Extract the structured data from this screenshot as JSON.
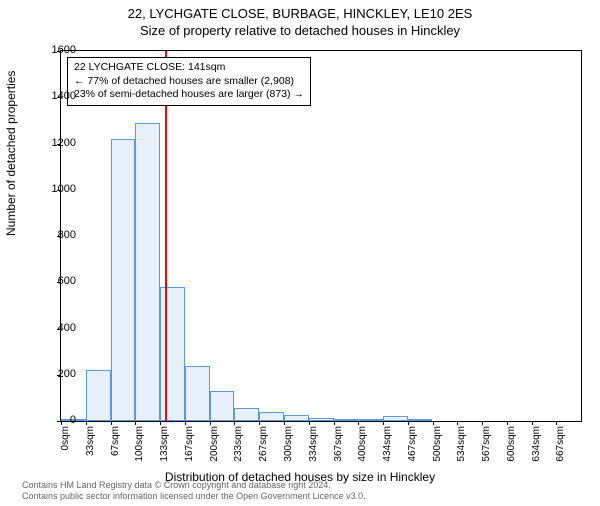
{
  "title_main": "22, LYCHGATE CLOSE, BURBAGE, HINCKLEY, LE10 2ES",
  "title_sub": "Size of property relative to detached houses in Hinckley",
  "ylabel": "Number of detached properties",
  "xlabel": "Distribution of detached houses by size in Hinckley",
  "chart": {
    "type": "histogram",
    "background_color": "#ffffff",
    "border_color": "#000000",
    "bar_fill": "#e8f0fb",
    "bar_stroke": "#5b9bd5",
    "refline_color": "#ff0000",
    "refline_x": 141,
    "ylim": [
      0,
      1600
    ],
    "ytick_step": 200,
    "xlim": [
      0,
      700
    ],
    "xtick_step": 33.35,
    "xtick_labels": [
      "0sqm",
      "33sqm",
      "67sqm",
      "100sqm",
      "133sqm",
      "167sqm",
      "200sqm",
      "233sqm",
      "267sqm",
      "300sqm",
      "334sqm",
      "367sqm",
      "400sqm",
      "434sqm",
      "467sqm",
      "500sqm",
      "534sqm",
      "567sqm",
      "600sqm",
      "634sqm",
      "667sqm"
    ],
    "bars": [
      {
        "x0": 0,
        "x1": 33,
        "y": 3
      },
      {
        "x0": 33,
        "x1": 67,
        "y": 220
      },
      {
        "x0": 67,
        "x1": 100,
        "y": 1220
      },
      {
        "x0": 100,
        "x1": 133,
        "y": 1290
      },
      {
        "x0": 133,
        "x1": 167,
        "y": 580
      },
      {
        "x0": 167,
        "x1": 200,
        "y": 240
      },
      {
        "x0": 200,
        "x1": 233,
        "y": 130
      },
      {
        "x0": 233,
        "x1": 267,
        "y": 55
      },
      {
        "x0": 267,
        "x1": 300,
        "y": 40
      },
      {
        "x0": 300,
        "x1": 334,
        "y": 25
      },
      {
        "x0": 334,
        "x1": 367,
        "y": 15
      },
      {
        "x0": 367,
        "x1": 400,
        "y": 5
      },
      {
        "x0": 400,
        "x1": 434,
        "y": 2
      },
      {
        "x0": 434,
        "x1": 467,
        "y": 20
      },
      {
        "x0": 467,
        "x1": 500,
        "y": 2
      }
    ],
    "label_fontsize": 12,
    "tick_fontsize": 10
  },
  "annotation": {
    "line1": "22 LYCHGATE CLOSE: 141sqm",
    "line2": "← 77% of detached houses are smaller (2,908)",
    "line3": "23% of semi-detached houses are larger (873) →",
    "border_color": "#000000",
    "background": "#ffffff"
  },
  "attribution": {
    "line1": "Contains HM Land Registry data © Crown copyright and database right 2024.",
    "line2": "Contains public sector information licensed under the Open Government Licence v3.0."
  }
}
